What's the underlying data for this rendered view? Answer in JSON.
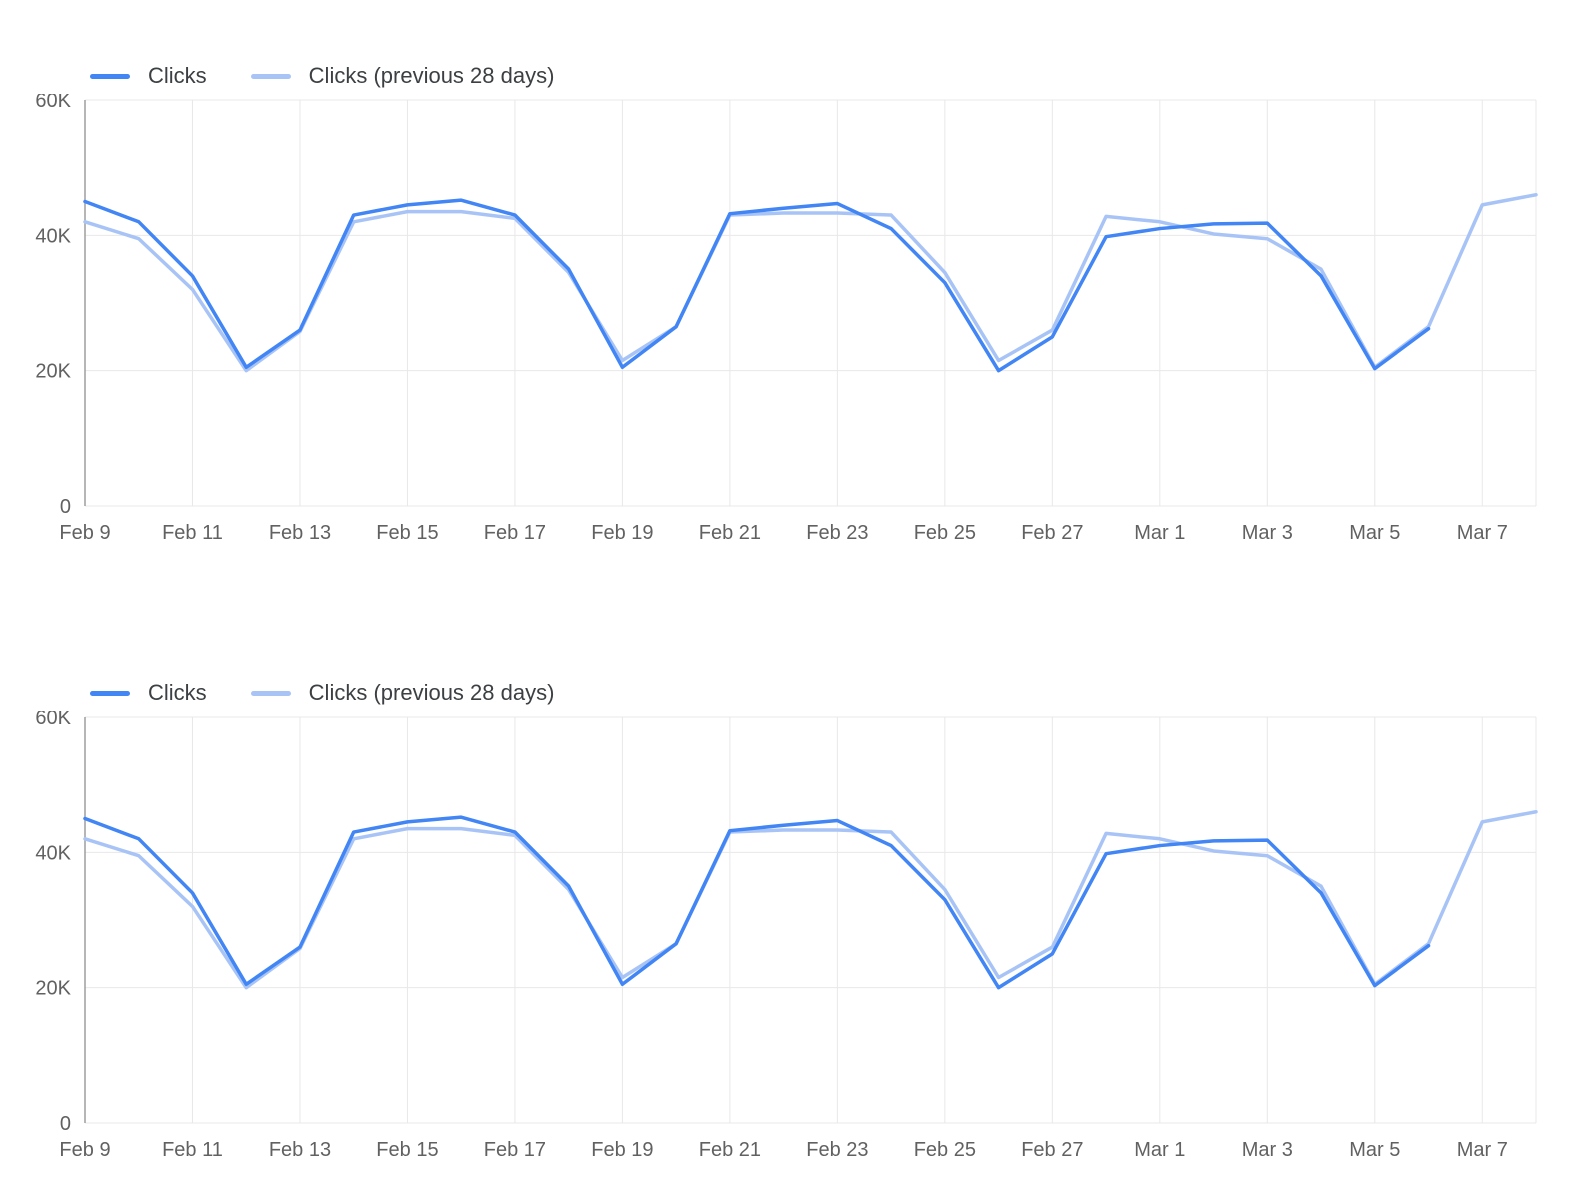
{
  "page": {
    "background": "#ffffff"
  },
  "charts": [
    {
      "legend": [
        {
          "label": "Clicks",
          "color": "#4285f4"
        },
        {
          "label": "Clicks (previous 28 days)",
          "color": "#a8c4f6"
        }
      ]
    },
    {
      "legend": [
        {
          "label": "Clicks",
          "color": "#4285f4"
        },
        {
          "label": "Clicks (previous 28 days)",
          "color": "#a8c4f6"
        }
      ]
    }
  ],
  "chart_data": [
    {
      "type": "line",
      "title": "",
      "xlabel": "",
      "ylabel": "",
      "grid": true,
      "legend_position": "top-left",
      "ylim": [
        0,
        60000
      ],
      "yticks": [
        0,
        20000,
        40000,
        60000
      ],
      "ytick_labels": [
        "0",
        "20K",
        "40K",
        "60K"
      ],
      "x": [
        "Feb 9",
        "Feb 10",
        "Feb 11",
        "Feb 12",
        "Feb 13",
        "Feb 14",
        "Feb 15",
        "Feb 16",
        "Feb 17",
        "Feb 18",
        "Feb 19",
        "Feb 20",
        "Feb 21",
        "Feb 22",
        "Feb 23",
        "Feb 24",
        "Feb 25",
        "Feb 26",
        "Feb 27",
        "Feb 28",
        "Mar 1",
        "Mar 2",
        "Mar 3",
        "Mar 4",
        "Mar 5",
        "Mar 6",
        "Mar 7",
        "Mar 8"
      ],
      "xtick_labels": [
        "Feb 9",
        "Feb 11",
        "Feb 13",
        "Feb 15",
        "Feb 17",
        "Feb 19",
        "Feb 21",
        "Feb 23",
        "Feb 25",
        "Feb 27",
        "Mar 1",
        "Mar 3",
        "Mar 5",
        "Mar 7"
      ],
      "series": [
        {
          "name": "Clicks",
          "color": "#4285f4",
          "values": [
            45000,
            42000,
            34000,
            20500,
            26000,
            43000,
            44500,
            45200,
            43000,
            35000,
            20500,
            26500,
            43200,
            44000,
            44700,
            41000,
            33000,
            20000,
            25000,
            39800,
            41000,
            41700,
            41800,
            34000,
            20300,
            26200,
            null,
            null
          ]
        },
        {
          "name": "Clicks (previous 28 days)",
          "color": "#a8c4f6",
          "values": [
            42000,
            39500,
            32000,
            20000,
            25800,
            42000,
            43500,
            43500,
            42500,
            34500,
            21500,
            26500,
            43000,
            43300,
            43300,
            43000,
            34500,
            21500,
            26000,
            42800,
            42000,
            40200,
            39500,
            35000,
            20500,
            26500,
            44500,
            46000
          ]
        }
      ],
      "colors": {
        "grid": "#e8e8e8",
        "axis": "#9e9e9e",
        "tick_text": "#616161"
      }
    },
    {
      "type": "line",
      "title": "",
      "xlabel": "",
      "ylabel": "",
      "grid": true,
      "legend_position": "top-left",
      "ylim": [
        0,
        60000
      ],
      "yticks": [
        0,
        20000,
        40000,
        60000
      ],
      "ytick_labels": [
        "0",
        "20K",
        "40K",
        "60K"
      ],
      "x": [
        "Feb 9",
        "Feb 10",
        "Feb 11",
        "Feb 12",
        "Feb 13",
        "Feb 14",
        "Feb 15",
        "Feb 16",
        "Feb 17",
        "Feb 18",
        "Feb 19",
        "Feb 20",
        "Feb 21",
        "Feb 22",
        "Feb 23",
        "Feb 24",
        "Feb 25",
        "Feb 26",
        "Feb 27",
        "Feb 28",
        "Mar 1",
        "Mar 2",
        "Mar 3",
        "Mar 4",
        "Mar 5",
        "Mar 6",
        "Mar 7",
        "Mar 8"
      ],
      "xtick_labels": [
        "Feb 9",
        "Feb 11",
        "Feb 13",
        "Feb 15",
        "Feb 17",
        "Feb 19",
        "Feb 21",
        "Feb 23",
        "Feb 25",
        "Feb 27",
        "Mar 1",
        "Mar 3",
        "Mar 5",
        "Mar 7"
      ],
      "series": [
        {
          "name": "Clicks",
          "color": "#4285f4",
          "values": [
            45000,
            42000,
            34000,
            20500,
            26000,
            43000,
            44500,
            45200,
            43000,
            35000,
            20500,
            26500,
            43200,
            44000,
            44700,
            41000,
            33000,
            20000,
            25000,
            39800,
            41000,
            41700,
            41800,
            34000,
            20300,
            26200,
            null,
            null
          ]
        },
        {
          "name": "Clicks (previous 28 days)",
          "color": "#a8c4f6",
          "values": [
            42000,
            39500,
            32000,
            20000,
            25800,
            42000,
            43500,
            43500,
            42500,
            34500,
            21500,
            26500,
            43000,
            43300,
            43300,
            43000,
            34500,
            21500,
            26000,
            42800,
            42000,
            40200,
            39500,
            35000,
            20500,
            26500,
            44500,
            46000
          ]
        }
      ],
      "colors": {
        "grid": "#e8e8e8",
        "axis": "#9e9e9e",
        "tick_text": "#616161"
      }
    }
  ]
}
